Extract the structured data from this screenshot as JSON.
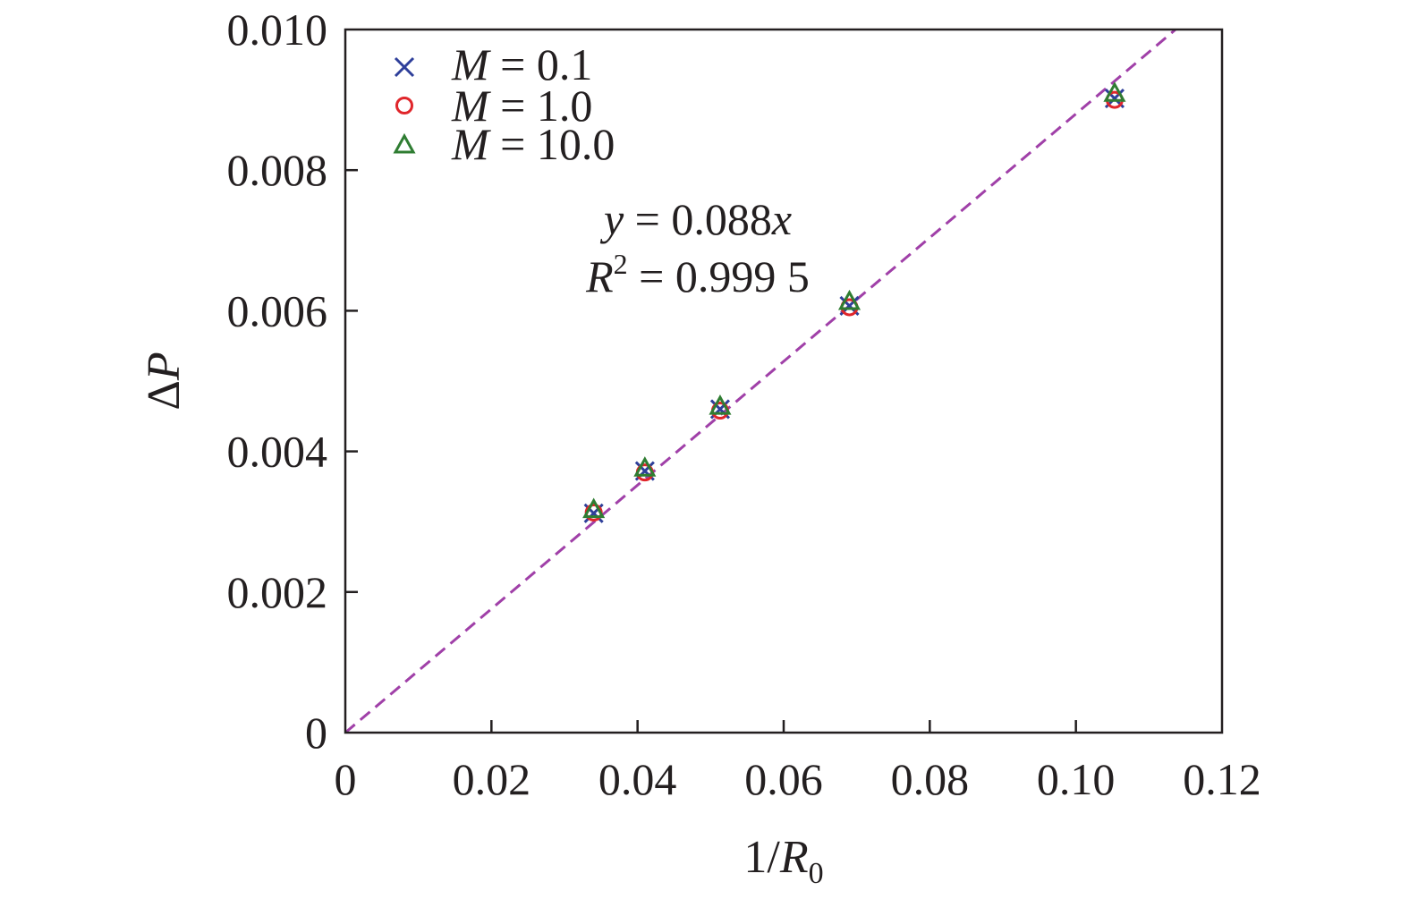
{
  "chart_data": {
    "type": "scatter",
    "xlabel_prefix": "1/",
    "xlabel_var": "R",
    "xlabel_sub": "0",
    "ylabel_delta": "Δ",
    "ylabel_var": "P",
    "xlim": [
      0,
      0.12
    ],
    "ylim": [
      0,
      0.01
    ],
    "x_ticks": [
      0,
      0.02,
      0.04,
      0.06,
      0.08,
      0.1,
      0.12
    ],
    "x_tick_labels": [
      "0",
      "0.02",
      "0.04",
      "0.06",
      "0.08",
      "0.10",
      "0.12"
    ],
    "y_ticks": [
      0,
      0.002,
      0.004,
      0.006,
      0.008,
      0.01
    ],
    "y_tick_labels": [
      "0",
      "0.002",
      "0.004",
      "0.006",
      "0.008",
      "0.010"
    ],
    "grid": false,
    "legend_position": "top-left",
    "series": [
      {
        "name_var": "M",
        "name_rest": " = 0.1",
        "marker": "x",
        "color": "#2e3f9a",
        "x": [
          0.034,
          0.041,
          0.0513,
          0.069,
          0.1053
        ],
        "y": [
          0.00312,
          0.00372,
          0.0046,
          0.00607,
          0.00902
        ]
      },
      {
        "name_var": "M",
        "name_rest": " = 1.0",
        "marker": "circle",
        "color": "#e0262b",
        "x": [
          0.034,
          0.041,
          0.0513,
          0.069,
          0.1053
        ],
        "y": [
          0.00313,
          0.0037,
          0.00458,
          0.00605,
          0.009
        ]
      },
      {
        "name_var": "M",
        "name_rest": " = 10.0",
        "marker": "triangle",
        "color": "#2f7d32",
        "x": [
          0.034,
          0.041,
          0.0513,
          0.069,
          0.1053
        ],
        "y": [
          0.00316,
          0.00375,
          0.00463,
          0.00612,
          0.00908
        ]
      }
    ],
    "fit_line": {
      "slope": 0.088,
      "x_range": [
        0,
        0.1136
      ],
      "color": "#a040a8",
      "style": "dashed"
    },
    "annotation": {
      "eq_var_y": "y",
      "eq_rest": " = 0.088",
      "eq_var_x": "x",
      "r2_var": "R",
      "r2_sup": "2",
      "r2_rest": " = 0.999 5"
    }
  }
}
